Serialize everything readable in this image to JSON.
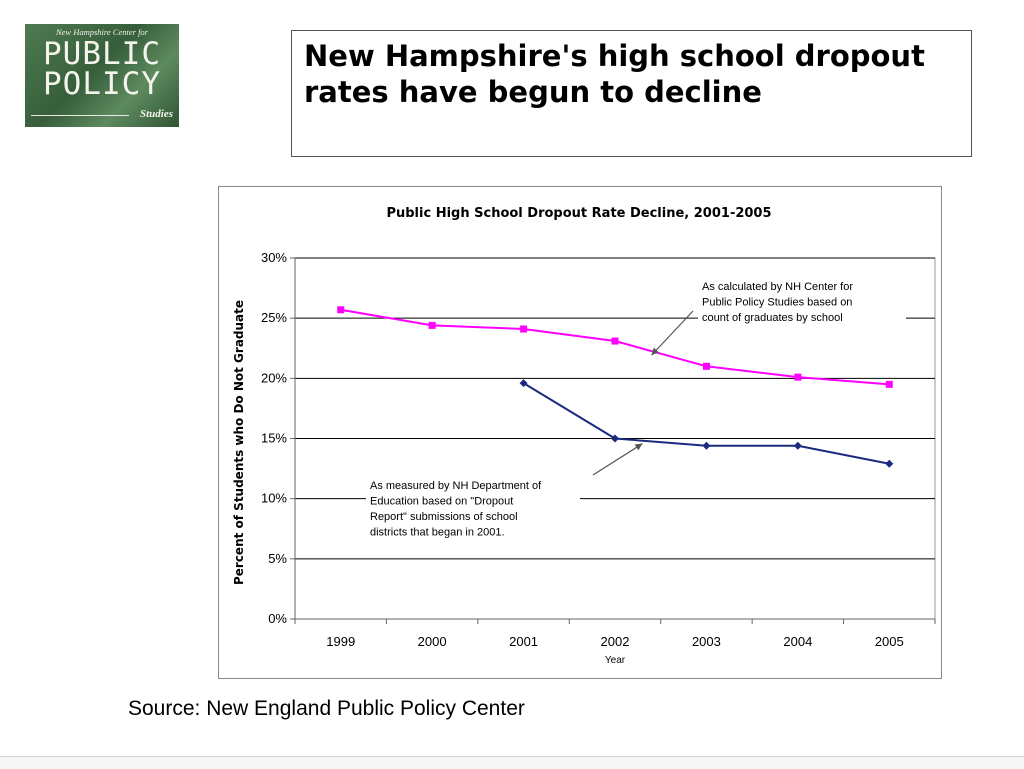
{
  "logo": {
    "top_line": "New Hampshire Center for",
    "line1": "PUBLIC",
    "line2": "POLICY",
    "bottom_line": "Studies"
  },
  "slide": {
    "title": "New Hampshire's high school dropout rates have begun to decline",
    "source": "Source: New England Public Policy Center"
  },
  "chart_data": {
    "type": "line",
    "title": "Public High School Dropout Rate Decline, 2001-2005",
    "xlabel": "Year",
    "ylabel": "Percent of Students who Do Not Graduate",
    "categories": [
      "1999",
      "2000",
      "2001",
      "2002",
      "2003",
      "2004",
      "2005"
    ],
    "ylim": [
      0,
      30
    ],
    "yticks": [
      "0%",
      "5%",
      "10%",
      "15%",
      "20%",
      "25%",
      "30%"
    ],
    "grid": true,
    "series": [
      {
        "color": "#ff00ff",
        "marker": "square",
        "values": [
          25.7,
          24.4,
          24.1,
          23.1,
          21.0,
          20.1,
          19.5
        ]
      },
      {
        "color": "#1c2a7e",
        "marker": "diamond",
        "values": [
          null,
          null,
          19.6,
          15.0,
          14.4,
          14.4,
          12.9
        ]
      }
    ],
    "annotations": [
      {
        "lines": [
          "As calculated by NH Center for",
          "Public Policy Studies based on",
          "count of graduates by school"
        ],
        "target_series": 0,
        "target_x": "2002.4"
      },
      {
        "lines": [
          "As measured by NH Department of",
          "Education based on \"Dropout",
          "Report\" submissions of school",
          "districts that began in 2001."
        ],
        "target_series": 1,
        "target_x": "2002.3"
      }
    ]
  }
}
